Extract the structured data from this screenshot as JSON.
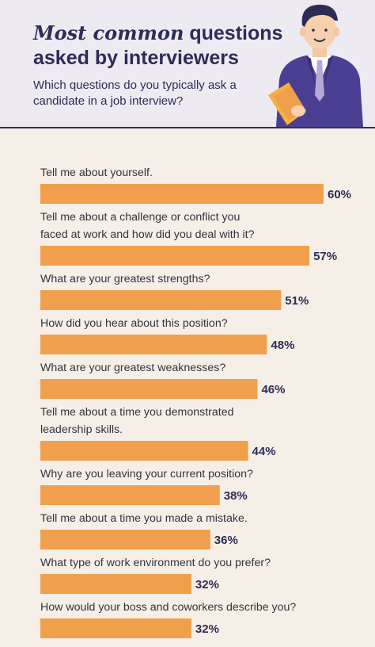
{
  "header": {
    "title_emphasis": "Most common",
    "title_rest": " questions",
    "title_line2": "asked by interviewers",
    "subtitle": "Which questions do you typically ask a candidate in a job interview?"
  },
  "colors": {
    "bar": "#f0a04c",
    "header_bg": "#edeaf1",
    "page_bg": "#f6efe7",
    "title": "#2e2c57"
  },
  "chart_data": {
    "type": "bar",
    "orientation": "horizontal",
    "title": "Most common questions asked by interviewers",
    "subtitle": "Which questions do you typically ask a candidate in a job interview?",
    "categories": [
      [
        "Tell me about yourself."
      ],
      [
        "Tell me about a challenge or conflict you",
        "faced at work and how did you deal with it?"
      ],
      [
        "What are your greatest strengths?"
      ],
      [
        "How did you hear about this position?"
      ],
      [
        "What are your greatest weaknesses?"
      ],
      [
        "Tell me about a time you demonstrated",
        "leadership skills."
      ],
      [
        "Why are you leaving your current position?"
      ],
      [
        "Tell me about a time you made a mistake."
      ],
      [
        "What type of work environment do you prefer?"
      ],
      [
        "How would your boss and coworkers describe you?"
      ]
    ],
    "values": [
      60,
      57,
      51,
      48,
      46,
      44,
      38,
      36,
      32,
      32
    ],
    "value_labels": [
      "60%",
      "57%",
      "51%",
      "48%",
      "46%",
      "44%",
      "38%",
      "36%",
      "32%",
      "32%"
    ],
    "unit": "%",
    "xlim": [
      0,
      60
    ]
  }
}
